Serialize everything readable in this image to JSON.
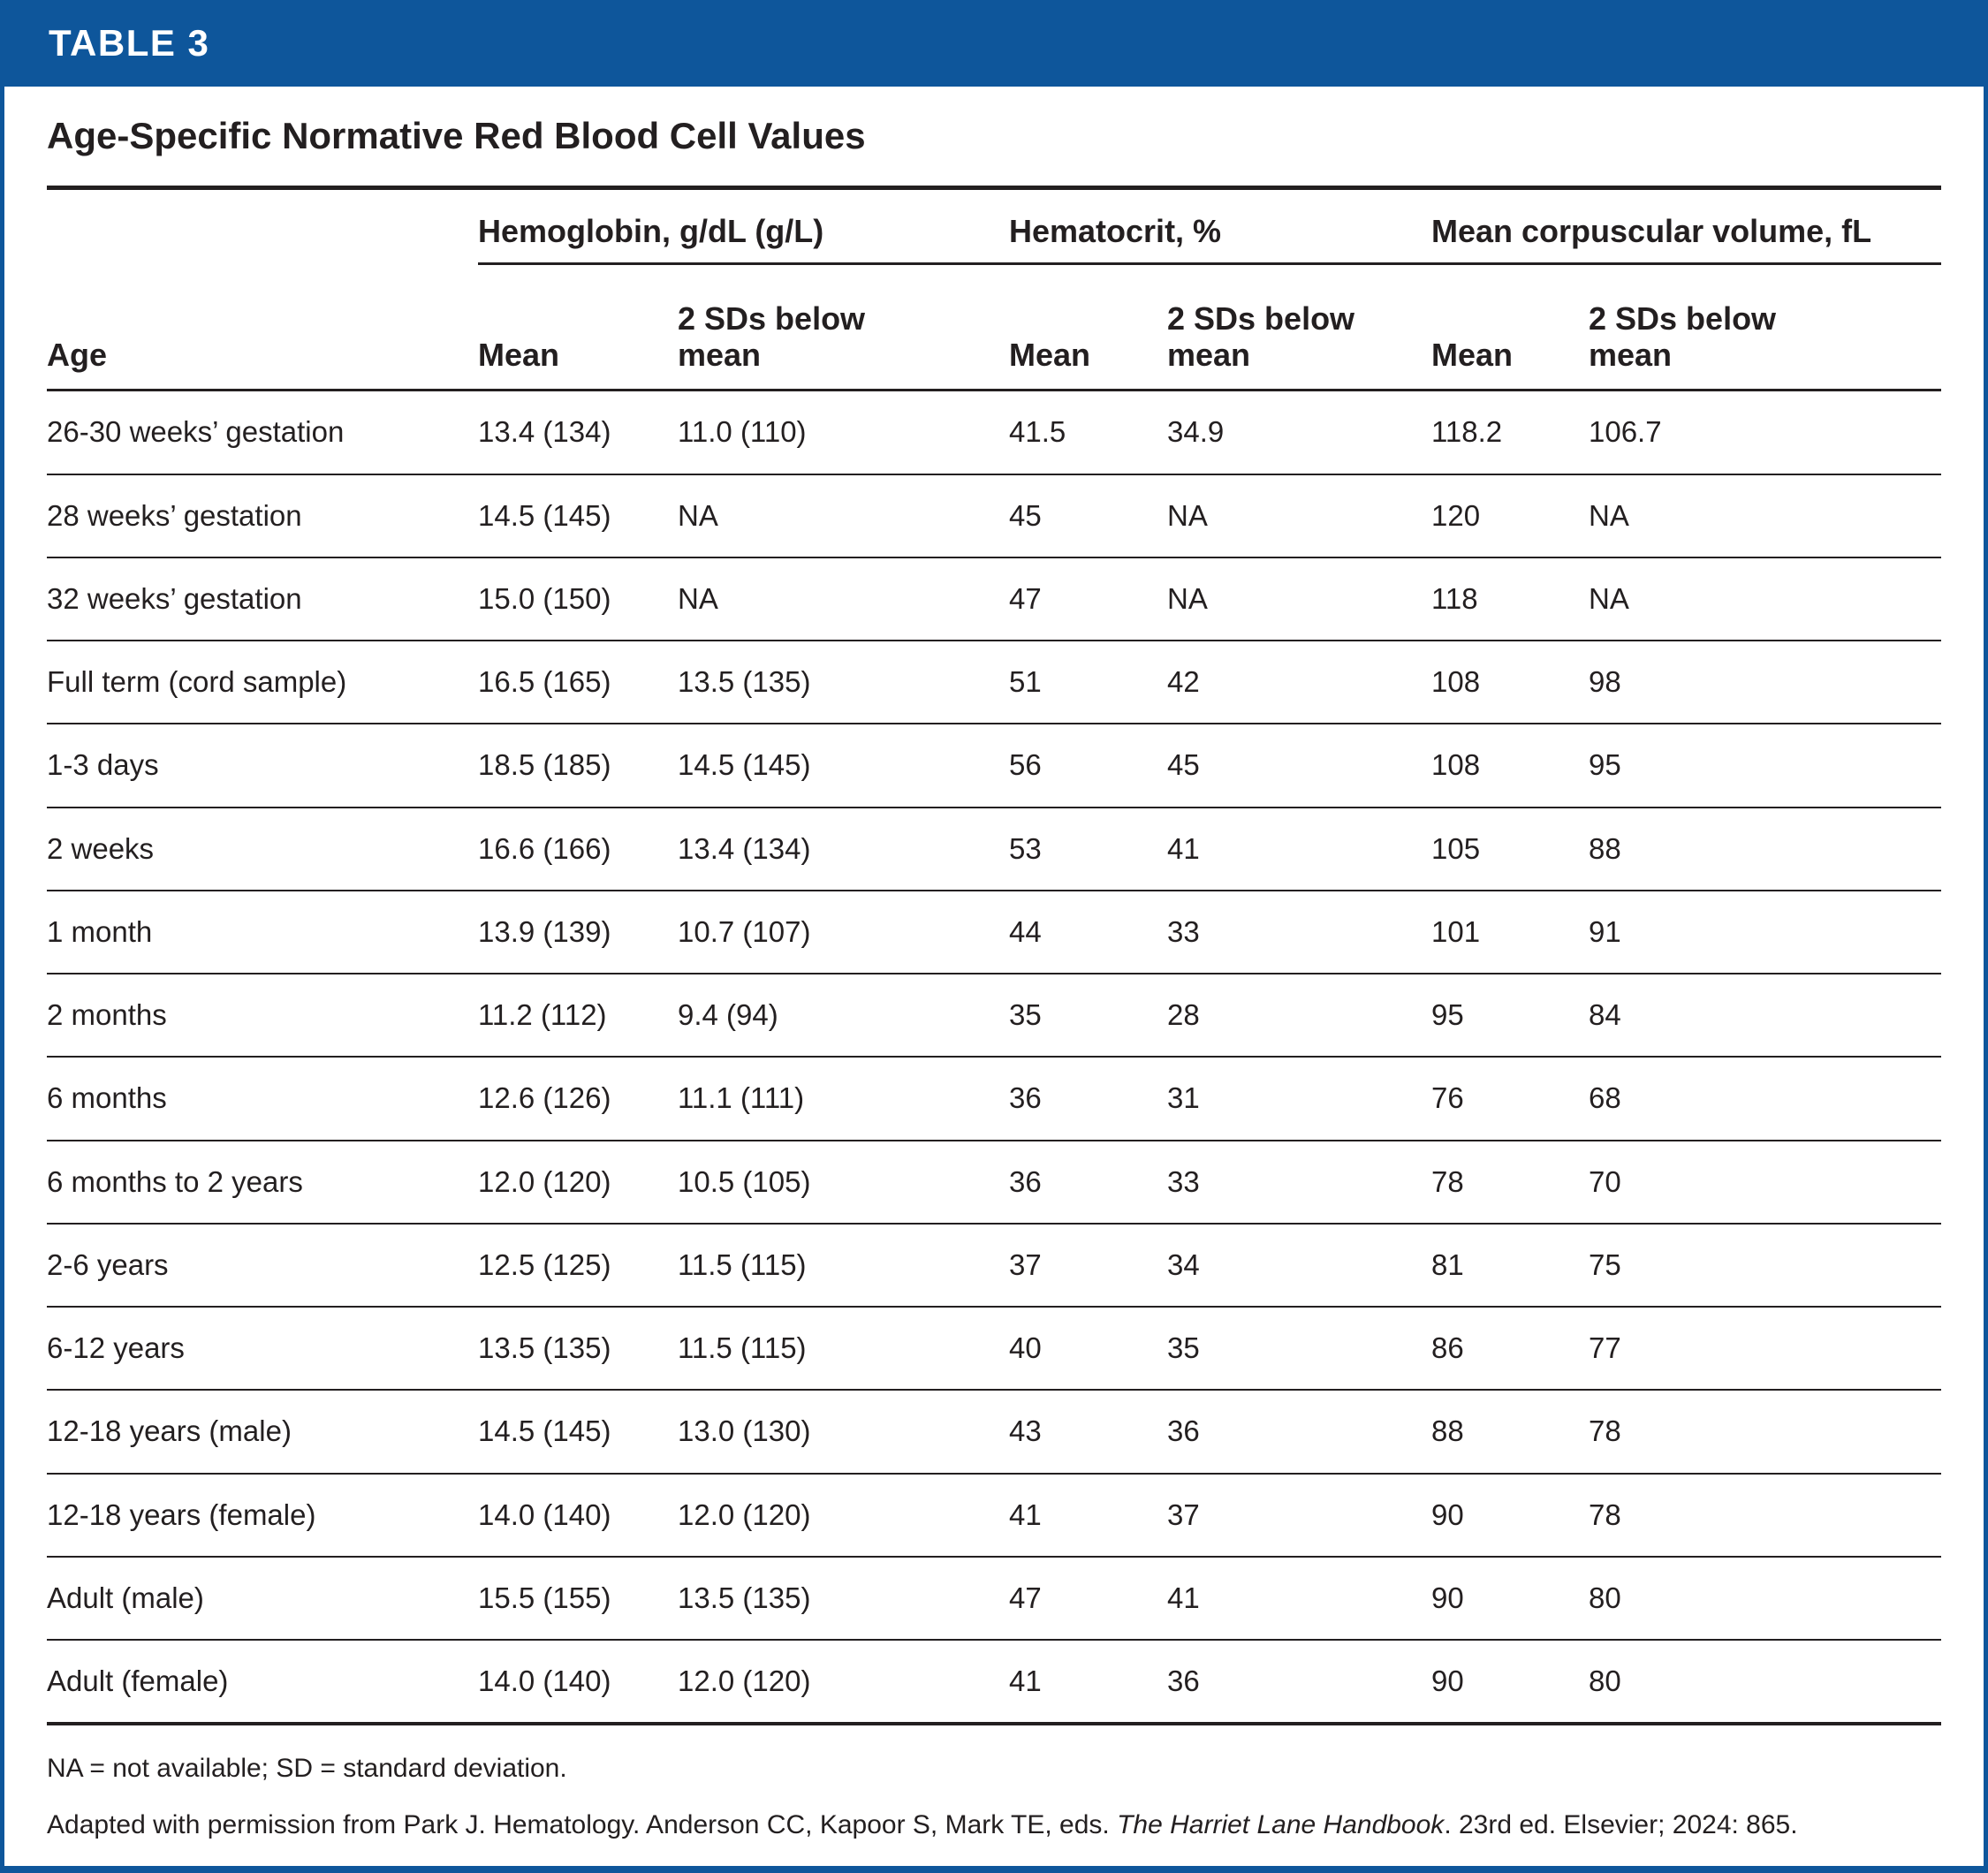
{
  "header": {
    "table_label": "TABLE 3"
  },
  "title": "Age-Specific Normative Red Blood Cell Values",
  "table": {
    "group_headers": [
      {
        "label": "Hemoglobin, g/dL (g/L)"
      },
      {
        "label": "Hematocrit, %"
      },
      {
        "label": "Mean corpuscular volume, fL"
      }
    ],
    "sub_headers": {
      "age": "Age",
      "mean": "Mean",
      "two_sd_line1": "2 SDs below",
      "two_sd_line2": "mean"
    },
    "rows": [
      {
        "age": "26-30 weeks’ gestation",
        "hgb_mean": "13.4 (134)",
        "hgb_2sd": "11.0 (110)",
        "hct_mean": "41.5",
        "hct_2sd": "34.9",
        "mcv_mean": "118.2",
        "mcv_2sd": "106.7"
      },
      {
        "age": "28 weeks’ gestation",
        "hgb_mean": "14.5 (145)",
        "hgb_2sd": "NA",
        "hct_mean": "45",
        "hct_2sd": "NA",
        "mcv_mean": "120",
        "mcv_2sd": "NA"
      },
      {
        "age": "32 weeks’ gestation",
        "hgb_mean": "15.0 (150)",
        "hgb_2sd": "NA",
        "hct_mean": "47",
        "hct_2sd": "NA",
        "mcv_mean": "118",
        "mcv_2sd": "NA"
      },
      {
        "age": "Full term (cord sample)",
        "hgb_mean": "16.5 (165)",
        "hgb_2sd": "13.5 (135)",
        "hct_mean": "51",
        "hct_2sd": "42",
        "mcv_mean": "108",
        "mcv_2sd": "98"
      },
      {
        "age": "1-3 days",
        "hgb_mean": "18.5 (185)",
        "hgb_2sd": "14.5 (145)",
        "hct_mean": "56",
        "hct_2sd": "45",
        "mcv_mean": "108",
        "mcv_2sd": "95"
      },
      {
        "age": "2 weeks",
        "hgb_mean": "16.6 (166)",
        "hgb_2sd": "13.4 (134)",
        "hct_mean": "53",
        "hct_2sd": "41",
        "mcv_mean": "105",
        "mcv_2sd": "88"
      },
      {
        "age": "1 month",
        "hgb_mean": "13.9 (139)",
        "hgb_2sd": "10.7 (107)",
        "hct_mean": "44",
        "hct_2sd": "33",
        "mcv_mean": "101",
        "mcv_2sd": "91"
      },
      {
        "age": "2 months",
        "hgb_mean": "11.2 (112)",
        "hgb_2sd": "9.4 (94)",
        "hct_mean": "35",
        "hct_2sd": "28",
        "mcv_mean": "95",
        "mcv_2sd": "84"
      },
      {
        "age": "6 months",
        "hgb_mean": "12.6 (126)",
        "hgb_2sd": "11.1 (111)",
        "hct_mean": "36",
        "hct_2sd": "31",
        "mcv_mean": "76",
        "mcv_2sd": "68"
      },
      {
        "age": "6 months to 2 years",
        "hgb_mean": "12.0 (120)",
        "hgb_2sd": "10.5 (105)",
        "hct_mean": "36",
        "hct_2sd": "33",
        "mcv_mean": "78",
        "mcv_2sd": "70"
      },
      {
        "age": "2-6 years",
        "hgb_mean": "12.5 (125)",
        "hgb_2sd": "11.5 (115)",
        "hct_mean": "37",
        "hct_2sd": "34",
        "mcv_mean": "81",
        "mcv_2sd": "75"
      },
      {
        "age": "6-12 years",
        "hgb_mean": "13.5 (135)",
        "hgb_2sd": "11.5 (115)",
        "hct_mean": "40",
        "hct_2sd": "35",
        "mcv_mean": "86",
        "mcv_2sd": "77"
      },
      {
        "age": "12-18 years (male)",
        "hgb_mean": "14.5 (145)",
        "hgb_2sd": "13.0 (130)",
        "hct_mean": "43",
        "hct_2sd": "36",
        "mcv_mean": "88",
        "mcv_2sd": "78"
      },
      {
        "age": "12-18 years (female)",
        "hgb_mean": "14.0 (140)",
        "hgb_2sd": "12.0 (120)",
        "hct_mean": "41",
        "hct_2sd": "37",
        "mcv_mean": "90",
        "mcv_2sd": "78"
      },
      {
        "age": "Adult (male)",
        "hgb_mean": "15.5 (155)",
        "hgb_2sd": "13.5 (135)",
        "hct_mean": "47",
        "hct_2sd": "41",
        "mcv_mean": "90",
        "mcv_2sd": "80"
      },
      {
        "age": "Adult (female)",
        "hgb_mean": "14.0 (140)",
        "hgb_2sd": "12.0 (120)",
        "hct_mean": "41",
        "hct_2sd": "36",
        "mcv_mean": "90",
        "mcv_2sd": "80"
      }
    ]
  },
  "footnotes": {
    "abbreviations": "NA = not available; SD = standard deviation.",
    "source_prefix": "Adapted with permission from Park J. Hematology. Anderson CC, Kapoor S, Mark TE, eds. ",
    "source_italic": "The Harriet Lane Handbook",
    "source_suffix": ". 23rd ed. Elsevier; 2024: 865."
  },
  "colors": {
    "brand_blue": "#0E569B",
    "text_ink": "#231F20"
  }
}
